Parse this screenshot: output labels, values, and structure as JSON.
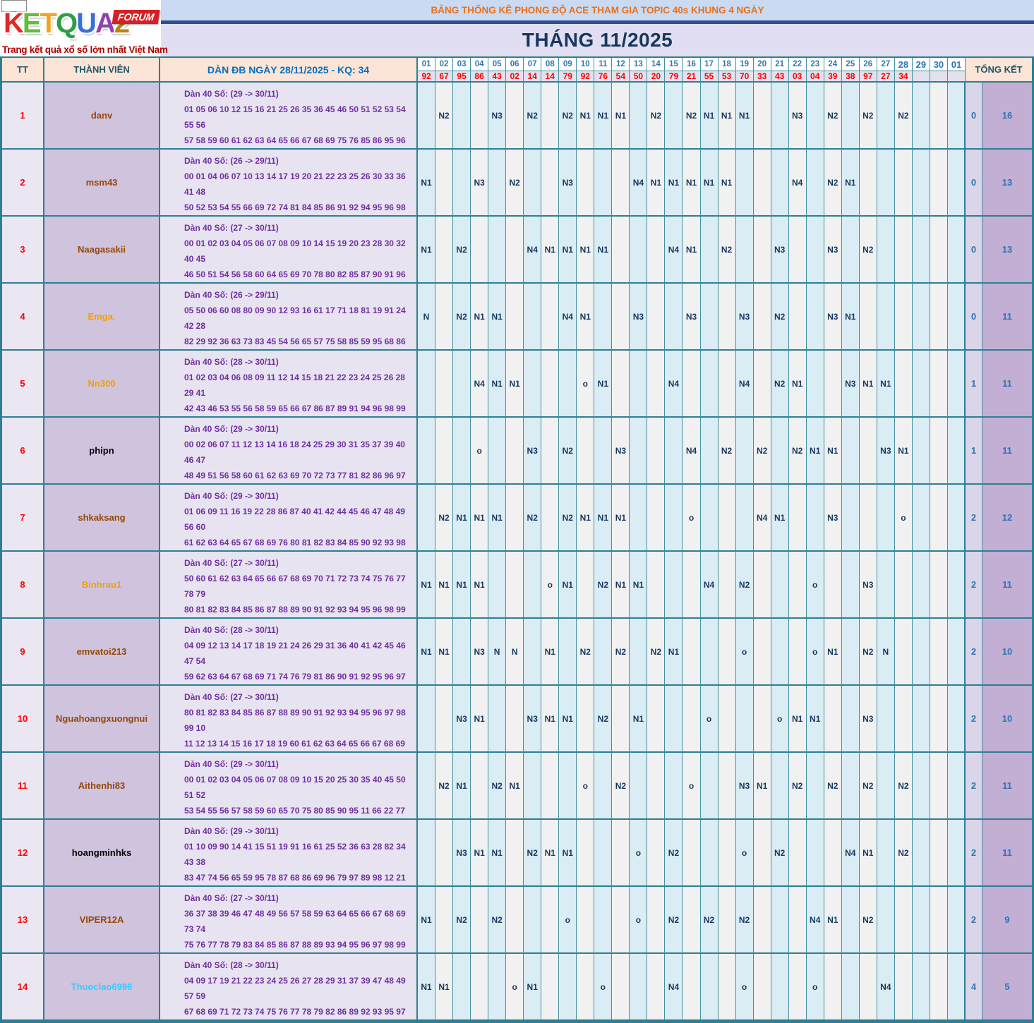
{
  "logo": {
    "letters": [
      {
        "ch": "K",
        "color": "#e02b2b"
      },
      {
        "ch": "E",
        "color": "#66bb3a"
      },
      {
        "ch": "T",
        "color": "#f6a21c"
      },
      {
        "ch": "Q",
        "color": "#2f9e44"
      },
      {
        "ch": "U",
        "color": "#3b6fd4"
      },
      {
        "ch": "A",
        "color": "#8e44ad"
      },
      {
        "ch": "2",
        "color": "#b8860b"
      }
    ],
    "forum_label": "FORUM",
    "tagline": "Trang kết quả xổ số lớn nhất Việt Nam"
  },
  "banner": {
    "title": "BẢNG THỐNG KÊ PHONG ĐỘ ACE THAM GIA TOPIC 40s KHUNG 4 NGÀY",
    "title_color": "#e8701a",
    "month_title": "THÁNG 11/2025"
  },
  "table": {
    "headers": {
      "tt": "TT",
      "member": "THÀNH VIÊN",
      "dan": "DÀN ĐB NGÀY 28/11/2025 - KQ: 34",
      "total": "TỔNG KẾT"
    },
    "days": [
      "01",
      "02",
      "03",
      "04",
      "05",
      "06",
      "07",
      "08",
      "09",
      "10",
      "11",
      "12",
      "13",
      "14",
      "15",
      "16",
      "17",
      "18",
      "19",
      "20",
      "21",
      "22",
      "23",
      "24",
      "25",
      "26",
      "27",
      "28",
      "29",
      "30",
      "01"
    ],
    "kq": [
      "92",
      "67",
      "95",
      "86",
      "43",
      "02",
      "14",
      "14",
      "79",
      "92",
      "76",
      "54",
      "50",
      "20",
      "79",
      "21",
      "55",
      "53",
      "70",
      "33",
      "43",
      "03",
      "04",
      "39",
      "38",
      "97",
      "27",
      "34",
      "",
      "",
      ""
    ],
    "rows": [
      {
        "tt": "1",
        "name": "danv",
        "name_color": "#974806",
        "dan_title": "Dàn 40 Số: (29 -> 30/11)",
        "dan_line1": "01 05 06 10 12 15 16 21 25 26 35 36 45 46 50 51 52 53 54 55 56",
        "dan_line2": "57 58 59 60 61 62 63 64 65 66 67 68 69 75 76 85 86 95 96",
        "marks": {
          "2": "N2",
          "5": "N3",
          "7": "N2",
          "9": "N2",
          "10": "N1",
          "11": "N1",
          "12": "N1",
          "14": "N2",
          "16": "N2",
          "17": "N1",
          "18": "N1",
          "19": "N1",
          "22": "N3",
          "24": "N2",
          "26": "N2",
          "28": "N2"
        },
        "total_o": "0",
        "total_n": "16"
      },
      {
        "tt": "2",
        "name": "msm43",
        "name_color": "#974806",
        "dan_title": "Dàn 40 Số: (26 -> 29/11)",
        "dan_line1": "00 01 04 06 07 10 13 14 17 19 20 21 22 23 25 26 30 33 36 41 48",
        "dan_line2": "50 52 53 54 55 66 69 72 74 81 84 85 86 91 92 94 95 96 98",
        "marks": {
          "1": "N1",
          "4": "N3",
          "6": "N2",
          "9": "N3",
          "13": "N4",
          "14": "N1",
          "15": "N1",
          "16": "N1",
          "17": "N1",
          "18": "N1",
          "22": "N4",
          "24": "N2",
          "25": "N1"
        },
        "total_o": "0",
        "total_n": "13"
      },
      {
        "tt": "3",
        "name": "Naagasakii",
        "name_color": "#974806",
        "dan_title": "Dàn 40 Số: (27 -> 30/11)",
        "dan_line1": "00 01 02 03 04 05 06 07 08 09 10 14 15 19 20 23 28 30 32 40 45",
        "dan_line2": "46 50 51 54 56 58 60 64 65 69 70 78 80 82 85 87 90 91 96",
        "marks": {
          "1": "N1",
          "3": "N2",
          "7": "N4",
          "8": "N1",
          "9": "N1",
          "10": "N1",
          "11": "N1",
          "15": "N4",
          "16": "N1",
          "18": "N2",
          "21": "N3",
          "24": "N3",
          "26": "N2"
        },
        "total_o": "0",
        "total_n": "13"
      },
      {
        "tt": "4",
        "name": "Emga.",
        "name_color": "#f2a007",
        "dan_title": "Dàn 40 Số: (26 -> 29/11)",
        "dan_line1": "05 50 06 60 08 80 09 90 12 93 16 61 17 71 18 81 19 91 24 42 28",
        "dan_line2": "82 29 92 36 63 73 83 45 54 56 65 57 75 58 85 59 95 68 86",
        "marks": {
          "1": "N",
          "3": "N2",
          "4": "N1",
          "5": "N1",
          "9": "N4",
          "10": "N1",
          "13": "N3",
          "16": "N3",
          "19": "N3",
          "21": "N2",
          "24": "N3",
          "25": "N1"
        },
        "total_o": "0",
        "total_n": "11"
      },
      {
        "tt": "5",
        "name": "Nn300",
        "name_color": "#f2a007",
        "dan_title": "Dàn 40 Số: (28 -> 30/11)",
        "dan_line1": "01 02 03 04 06 08 09 11 12 14 15 18 21 22 23 24 25 26 28 29 41",
        "dan_line2": "42 43 46 53 55 56 58 59 65 66 67 86 87 89 91 94 96 98 99",
        "marks": {
          "4": "N4",
          "5": "N1",
          "6": "N1",
          "10": "o",
          "11": "N1",
          "15": "N4",
          "19": "N4",
          "21": "N2",
          "22": "N1",
          "25": "N3",
          "26": "N1",
          "27": "N1"
        },
        "total_o": "1",
        "total_n": "11"
      },
      {
        "tt": "6",
        "name": "phipn",
        "name_color": "#000000",
        "dan_title": "Dàn 40 Số: (29 -> 30/11)",
        "dan_line1": "00 02 06 07 11 12 13 14 16 18 24 25 29 30 31 35 37 39 40 46 47",
        "dan_line2": "48 49 51 56 58 60 61 62 63 69 70 72 73 77 81 82 86 96 97",
        "marks": {
          "4": "o",
          "7": "N3",
          "9": "N2",
          "12": "N3",
          "16": "N4",
          "18": "N2",
          "20": "N2",
          "22": "N2",
          "23": "N1",
          "24": "N1",
          "27": "N3",
          "28": "N1"
        },
        "total_o": "1",
        "total_n": "11"
      },
      {
        "tt": "7",
        "name": "shkaksang",
        "name_color": "#974806",
        "dan_title": "Dàn 40 Số: (29 -> 30/11)",
        "dan_line1": "01 06 09 11 16 19 22 28 86 87 40 41 42 44 45 46 47 48 49 56 60",
        "dan_line2": "61 62 63 64 65 67 68 69 76 80 81 82 83 84 85 90 92 93 98",
        "marks": {
          "2": "N2",
          "3": "N1",
          "4": "N1",
          "5": "N1",
          "7": "N2",
          "9": "N2",
          "10": "N1",
          "11": "N1",
          "12": "N1",
          "16": "o",
          "20": "N4",
          "21": "N1",
          "24": "N3",
          "28": "o"
        },
        "total_o": "2",
        "total_n": "12"
      },
      {
        "tt": "8",
        "name": "Binhrau1",
        "name_color": "#f2a007",
        "dan_title": "Dàn 40 Số: (27 -> 30/11)",
        "dan_line1": "50 60 61 62 63 64 65 66 67 68 69 70 71 72 73 74 75 76 77 78 79",
        "dan_line2": "80 81 82 83 84 85 86 87 88 89 90 91 92 93 94 95 96 98 99",
        "marks": {
          "1": "N1",
          "2": "N1",
          "3": "N1",
          "4": "N1",
          "8": "o",
          "9": "N1",
          "11": "N2",
          "12": "N1",
          "13": "N1",
          "17": "N4",
          "19": "N2",
          "23": "o",
          "26": "N3"
        },
        "total_o": "2",
        "total_n": "11"
      },
      {
        "tt": "9",
        "name": "emvatoi213",
        "name_color": "#974806",
        "dan_title": "Dàn 40 Số: (28 -> 30/11)",
        "dan_line1": "04 09 12 13 14 17 18 19 21 24 26 29 31 36 40 41 42 45 46 47 54",
        "dan_line2": "59 62 63 64 67 68 69 71 74 76 79 81 86 90 91 92 95 96 97",
        "marks": {
          "1": "N1",
          "2": "N1",
          "4": "N3",
          "5": "N",
          "6": "N",
          "8": "N1",
          "10": "N2",
          "12": "N2",
          "14": "N2",
          "15": "N1",
          "19": "o",
          "23": "o",
          "24": "N1",
          "26": "N2",
          "27": "N"
        },
        "total_o": "2",
        "total_n": "10"
      },
      {
        "tt": "10",
        "name": "Nguahoangxuongnui",
        "name_color": "#974806",
        "dan_title": "Dàn 40 Số: (27 -> 30/11)",
        "dan_line1": "80 81 82 83 84 85 86 87 88 89 90 91 92 93 94 95 96 97 98 99 10",
        "dan_line2": "11 12 13 14 15 16 17 18 19 60 61 62 63 64 65 66 67 68 69",
        "marks": {
          "3": "N3",
          "4": "N1",
          "7": "N3",
          "8": "N1",
          "9": "N1",
          "11": "N2",
          "13": "N1",
          "17": "o",
          "21": "o",
          "22": "N1",
          "23": "N1",
          "26": "N3"
        },
        "total_o": "2",
        "total_n": "10"
      },
      {
        "tt": "11",
        "name": "Aithenhi83",
        "name_color": "#974806",
        "dan_title": "Dàn 40 Số: (29 -> 30/11)",
        "dan_line1": "00 01 02 03 04 05 06 07 08 09 10 15 20 25 30 35 40 45 50 51 52",
        "dan_line2": "53 54 55 56 57 58 59 60 65 70 75 80 85 90 95 11 66 22 77",
        "marks": {
          "2": "N2",
          "3": "N1",
          "5": "N2",
          "6": "N1",
          "10": "o",
          "12": "N2",
          "16": "o",
          "19": "N3",
          "20": "N1",
          "22": "N2",
          "24": "N2",
          "26": "N2",
          "28": "N2"
        },
        "total_o": "2",
        "total_n": "11"
      },
      {
        "tt": "12",
        "name": "hoangminhks",
        "name_color": "#000000",
        "dan_title": "Dàn 40 Số: (29 -> 30/11)",
        "dan_line1": "01 10 09 90 14 41 15 51 19 91 16 61 25 52 36 63 28 82 34 43 38",
        "dan_line2": "83 47 74 56 65 59 95 78 87 68 86 69 96 79 97 89 98 12 21",
        "marks": {
          "3": "N3",
          "4": "N1",
          "5": "N1",
          "7": "N2",
          "8": "N1",
          "9": "N1",
          "13": "o",
          "15": "N2",
          "19": "o",
          "21": "N2",
          "25": "N4",
          "26": "N1",
          "28": "N2"
        },
        "total_o": "2",
        "total_n": "11"
      },
      {
        "tt": "13",
        "name": "VIPER12A",
        "name_color": "#974806",
        "dan_title": "Dàn 40 Số: (27 -> 30/11)",
        "dan_line1": "36 37 38 39 46 47 48 49 56 57 58 59 63 64 65 66 67 68 69 73 74",
        "dan_line2": "75 76 77 78 79 83 84 85 86 87 88 89 93 94 95 96 97 98 99",
        "marks": {
          "1": "N1",
          "3": "N2",
          "5": "N2",
          "9": "o",
          "13": "o",
          "15": "N2",
          "17": "N2",
          "19": "N2",
          "23": "N4",
          "24": "N1",
          "26": "N2"
        },
        "total_o": "2",
        "total_n": "9"
      },
      {
        "tt": "14",
        "name": "Thuoclao6996",
        "name_color": "#33ccff",
        "dan_title": "Dàn 40 Số: (28 -> 30/11)",
        "dan_line1": "04 09 17 19 21 22 23 24 25 26 27 28 29 31 37 39 47 48 49 57 59",
        "dan_line2": "67 68 69 71 72 73 74 75 76 77 78 79 82 86 89 92 93 95 97",
        "marks": {
          "1": "N1",
          "2": "N1",
          "6": "o",
          "7": "N1",
          "11": "o",
          "15": "N4",
          "19": "o",
          "23": "o",
          "27": "N4"
        },
        "total_o": "4",
        "total_n": "5"
      }
    ]
  }
}
